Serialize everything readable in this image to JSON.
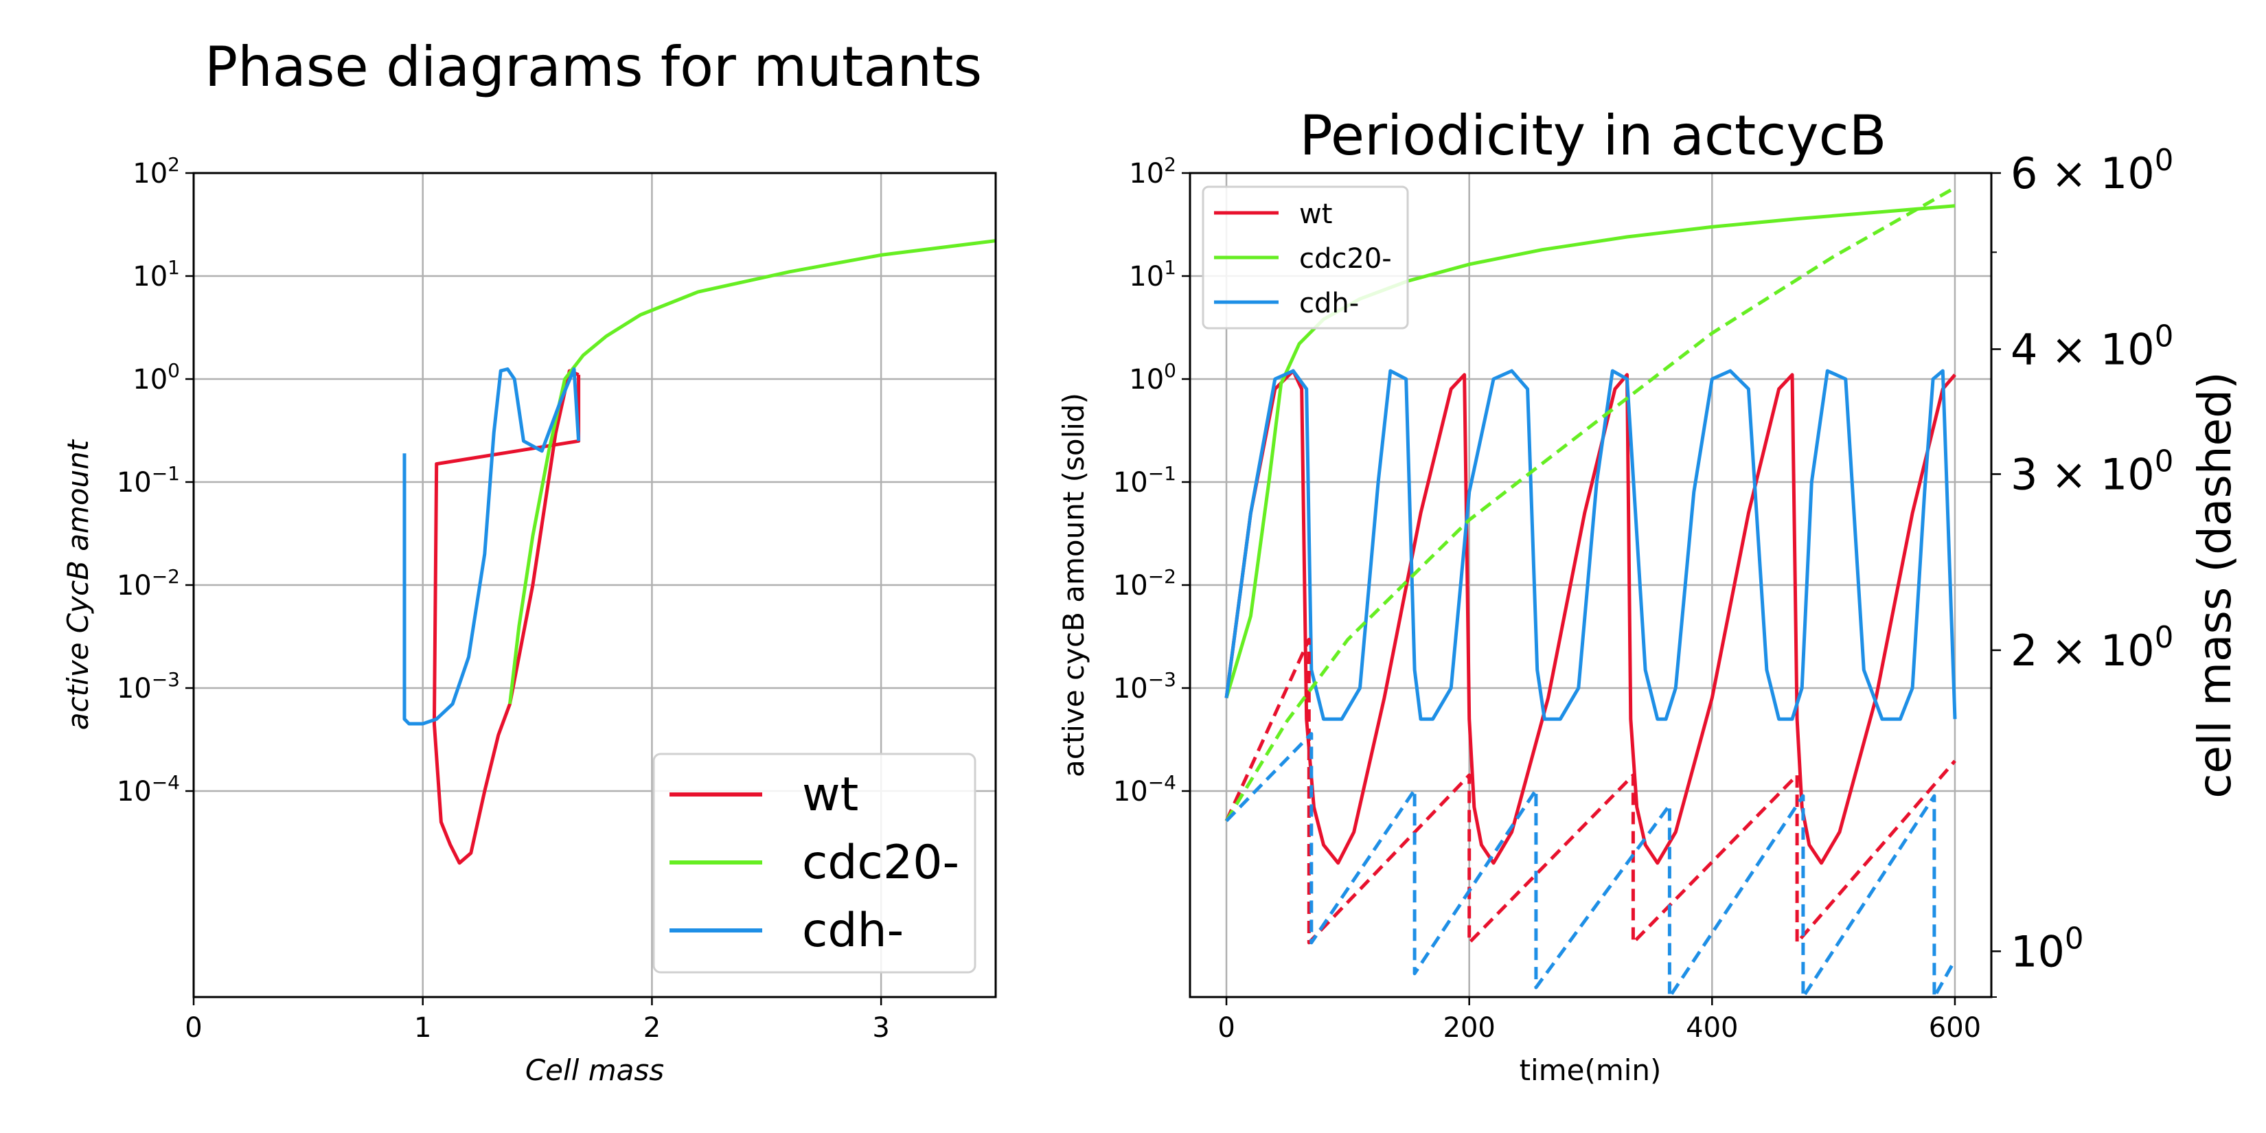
{
  "colors": {
    "wt": "#e8112d",
    "cdc20": "#66ee22",
    "cdh": "#1e8fe6",
    "grid": "#b0b0b0",
    "axis": "#000000"
  },
  "left_panel": {
    "title": "Phase diagrams for mutants",
    "xlabel": "Cell mass",
    "ylabel": "active CycB amount",
    "legend": [
      "wt",
      "cdc20-",
      "cdh-"
    ]
  },
  "right_panel": {
    "title": "Periodicity in actcycB",
    "xlabel": "time(min)",
    "ylabel_left": "active cycB amount (solid)",
    "ylabel_right": "cell mass (dashed)",
    "legend": [
      "wt",
      "cdc20-",
      "cdh-"
    ]
  },
  "chart_data": [
    {
      "type": "line",
      "title": "Phase diagrams for mutants",
      "xlabel": "Cell mass",
      "ylabel": "active CycB amount",
      "xlim": [
        0,
        3.5
      ],
      "ylim": [
        1e-06,
        100
      ],
      "yscale": "log",
      "grid": true,
      "legend_position": "lower-right",
      "x_ticks": [
        "0",
        "1",
        "2",
        "3"
      ],
      "y_ticks": [
        "10^2",
        "10^1",
        "10^0",
        "10^-1",
        "10^-2",
        "10^-3",
        "10^-4"
      ],
      "series": [
        {
          "name": "wt",
          "x": [
            1.68,
            1.68,
            1.06,
            1.05,
            1.08,
            1.12,
            1.16,
            1.21,
            1.27,
            1.33,
            1.38,
            1.48,
            1.58,
            1.64,
            1.68
          ],
          "y": [
            1.1,
            0.25,
            0.15,
            0.00045,
            5e-05,
            3e-05,
            2e-05,
            2.5e-05,
            0.0001,
            0.00035,
            0.0007,
            0.01,
            0.3,
            1.2,
            1.1
          ]
        },
        {
          "name": "cdc20-",
          "x": [
            1.38,
            1.42,
            1.48,
            1.55,
            1.62,
            1.7,
            1.8,
            1.95,
            2.2,
            2.6,
            3.0,
            3.5
          ],
          "y": [
            0.0007,
            0.004,
            0.03,
            0.2,
            1.0,
            1.7,
            2.6,
            4.2,
            7.0,
            11,
            16,
            22
          ]
        },
        {
          "name": "cdh-",
          "x": [
            0.92,
            0.92,
            0.94,
            1.0,
            1.06,
            1.13,
            1.2,
            1.27,
            1.31,
            1.34,
            1.37,
            1.4,
            1.44,
            1.52,
            1.6,
            1.66,
            1.68
          ],
          "y": [
            0.19,
            0.0005,
            0.00045,
            0.00045,
            0.0005,
            0.0007,
            0.002,
            0.02,
            0.3,
            1.2,
            1.25,
            1.0,
            0.25,
            0.2,
            0.6,
            1.25,
            0.25
          ]
        }
      ]
    },
    {
      "type": "line",
      "title": "Periodicity in actcycB",
      "xlabel": "time(min)",
      "ylabel": "active cycB amount (solid)",
      "y2label": "cell mass (dashed)",
      "xlim": [
        -30,
        630
      ],
      "ylim": [
        1e-06,
        100
      ],
      "yscale": "log",
      "y2lim": [
        0.9,
        6
      ],
      "y2scale": "log",
      "grid": true,
      "legend_position": "upper-left",
      "x_ticks": [
        "0",
        "200",
        "400",
        "600"
      ],
      "y_ticks": [
        "10^2",
        "10^1",
        "10^0",
        "10^-1",
        "10^-2",
        "10^-3",
        "10^-4"
      ],
      "y2_ticks": [
        "6 × 10^0",
        "4 × 10^0",
        "3 × 10^0",
        "2 × 10^0",
        "10^0"
      ],
      "series": [
        {
          "name": "wt",
          "axis": "left",
          "style": "solid",
          "x": [
            0,
            20,
            40,
            55,
            62,
            66,
            72,
            80,
            92,
            105,
            130,
            160,
            185,
            196,
            200,
            204,
            210,
            220,
            235,
            265,
            295,
            320,
            330,
            333,
            338,
            345,
            355,
            370,
            400,
            430,
            455,
            466,
            470,
            474,
            480,
            490,
            505,
            535,
            565,
            590,
            600
          ],
          "y": [
            0.0008,
            0.05,
            0.8,
            1.2,
            0.8,
            0.0005,
            7e-05,
            3e-05,
            2e-05,
            4e-05,
            0.0008,
            0.05,
            0.8,
            1.1,
            0.0005,
            7e-05,
            3e-05,
            2e-05,
            4e-05,
            0.0008,
            0.05,
            0.8,
            1.1,
            0.0005,
            7e-05,
            3e-05,
            2e-05,
            4e-05,
            0.0008,
            0.05,
            0.8,
            1.1,
            0.0005,
            7e-05,
            3e-05,
            2e-05,
            4e-05,
            0.0008,
            0.05,
            0.8,
            1.1
          ]
        },
        {
          "name": "cdc20-",
          "axis": "left",
          "style": "solid",
          "x": [
            0,
            20,
            35,
            45,
            60,
            80,
            110,
            150,
            200,
            260,
            330,
            400,
            470,
            540,
            600
          ],
          "y": [
            0.0008,
            0.005,
            0.1,
            0.9,
            2.2,
            3.8,
            6.0,
            9.0,
            13,
            18,
            24,
            30,
            36,
            42,
            48
          ]
        },
        {
          "name": "cdh-",
          "axis": "left",
          "style": "solid",
          "x": [
            0,
            20,
            40,
            55,
            66,
            70,
            80,
            95,
            110,
            125,
            135,
            148,
            155,
            160,
            170,
            185,
            200,
            220,
            235,
            248,
            256,
            262,
            275,
            290,
            305,
            318,
            330,
            345,
            355,
            362,
            370,
            385,
            400,
            415,
            430,
            445,
            455,
            466,
            474,
            482,
            495,
            510,
            525,
            540,
            555,
            565,
            575,
            582,
            590,
            600
          ],
          "y": [
            0.0008,
            0.05,
            1.0,
            1.2,
            0.8,
            0.0015,
            0.0005,
            0.0005,
            0.001,
            0.1,
            1.2,
            1.0,
            0.0015,
            0.0005,
            0.0005,
            0.001,
            0.08,
            1.0,
            1.2,
            0.8,
            0.0015,
            0.0005,
            0.0005,
            0.001,
            0.1,
            1.2,
            1.0,
            0.0015,
            0.0005,
            0.0005,
            0.001,
            0.08,
            1.0,
            1.2,
            0.8,
            0.0015,
            0.0005,
            0.0005,
            0.001,
            0.1,
            1.2,
            1.0,
            0.0015,
            0.0005,
            0.0005,
            0.001,
            0.08,
            1.0,
            1.2,
            0.0005
          ]
        },
        {
          "name": "wt mass",
          "axis": "right",
          "style": "dashed",
          "x": [
            0,
            68,
            68,
            200,
            200,
            335,
            335,
            470,
            470,
            600
          ],
          "y": [
            1.35,
            2.05,
            1.02,
            1.5,
            1.02,
            1.5,
            1.02,
            1.5,
            1.02,
            1.55
          ]
        },
        {
          "name": "cdc20- mass",
          "axis": "right",
          "style": "dashed",
          "x": [
            0,
            50,
            100,
            200,
            300,
            400,
            500,
            600
          ],
          "y": [
            1.35,
            1.7,
            2.05,
            2.7,
            3.35,
            4.15,
            4.95,
            5.8
          ]
        },
        {
          "name": "cdh- mass",
          "axis": "right",
          "style": "dashed",
          "x": [
            0,
            70,
            70,
            155,
            155,
            255,
            255,
            365,
            365,
            475,
            475,
            583,
            583,
            600
          ],
          "y": [
            1.35,
            1.65,
            1.02,
            1.45,
            0.95,
            1.45,
            0.92,
            1.4,
            0.9,
            1.43,
            0.9,
            1.43,
            0.9,
            0.98
          ]
        }
      ]
    }
  ]
}
